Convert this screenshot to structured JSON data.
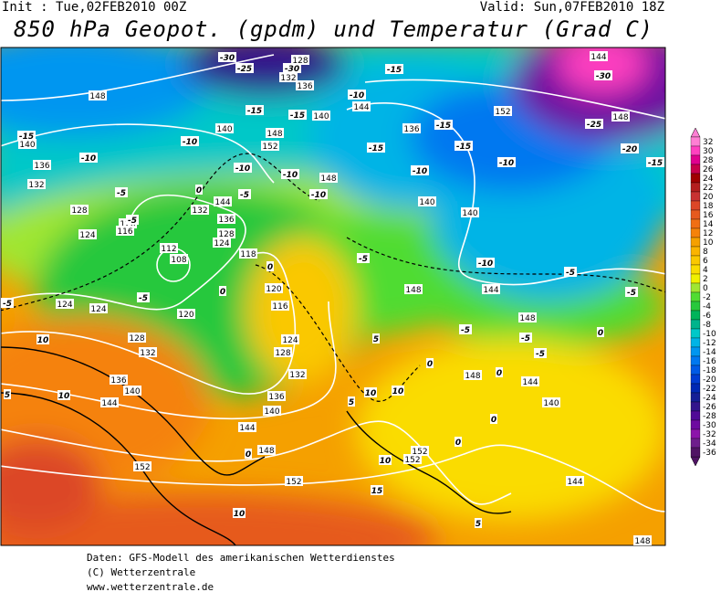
{
  "header": {
    "init": "Init : Tue,02FEB2010 00Z",
    "valid": "Valid: Sun,07FEB2010 18Z",
    "title": "850 hPa Geopot. (gpdm) und Temperatur (Grad C)"
  },
  "map": {
    "isohypse_labels": [
      "148",
      "140",
      "136",
      "132",
      "128",
      "124",
      "120",
      "116",
      "112",
      "108",
      "118",
      "120",
      "116",
      "124",
      "128",
      "132",
      "136",
      "140",
      "144",
      "148",
      "152",
      "152",
      "124",
      "124",
      "128",
      "132",
      "136",
      "140",
      "144",
      "120",
      "144",
      "136",
      "128",
      "124",
      "148",
      "152",
      "140",
      "136",
      "132",
      "128",
      "140",
      "144",
      "148",
      "140",
      "140",
      "136",
      "144",
      "148",
      "148",
      "148",
      "144",
      "140",
      "144",
      "152",
      "152",
      "152",
      "144",
      "148",
      "132",
      "148"
    ],
    "isotherm_labels": [
      "-30",
      "-25",
      "-30",
      "-15",
      "-10",
      "-15",
      "-15",
      "-10",
      "-10",
      "-10",
      "-15",
      "-10",
      "-5",
      "-5",
      "-10",
      "-5",
      "-15",
      "-15",
      "-10",
      "-15",
      "-10",
      "-10",
      "-5",
      "-5",
      "-5",
      "0",
      "0",
      "0",
      "-5",
      "-5",
      "10",
      "5",
      "10",
      "5",
      "5",
      "10",
      "10",
      "0",
      "-5",
      "-5",
      "-5",
      "0",
      "0",
      "0",
      "0",
      "0",
      "10",
      "10",
      "15",
      "5",
      "-30",
      "-25",
      "-20",
      "-15"
    ]
  },
  "colorbar": {
    "labels": [
      32,
      30,
      28,
      26,
      24,
      22,
      20,
      18,
      16,
      14,
      12,
      10,
      8,
      6,
      4,
      2,
      0,
      -2,
      -4,
      -6,
      -8,
      -10,
      -12,
      -14,
      -16,
      -18,
      -20,
      -22,
      -24,
      -26,
      -28,
      -30,
      -32,
      -34,
      -36
    ],
    "colors": [
      "#ff7fd4",
      "#ff40c0",
      "#e0008f",
      "#c8004a",
      "#a00000",
      "#b41e1e",
      "#c83232",
      "#dc4628",
      "#e65a1e",
      "#f06e14",
      "#f5820a",
      "#f5a000",
      "#fab400",
      "#fac800",
      "#fadc00",
      "#f0f000",
      "#a0e632",
      "#50dc32",
      "#28c83c",
      "#00b45a",
      "#00b48c",
      "#00c8c8",
      "#00b4e6",
      "#0096f0",
      "#0078f0",
      "#005ae6",
      "#003cd2",
      "#0028b4",
      "#141e96",
      "#32148c",
      "#500a96",
      "#6e0aa0",
      "#8c14aa",
      "#6e1e8c",
      "#501464"
    ]
  },
  "footer": {
    "lines": [
      "Daten: GFS-Modell des amerikanischen Wetterdienstes",
      "(C) Wetterzentrale",
      "www.wetterzentrale.de"
    ]
  }
}
